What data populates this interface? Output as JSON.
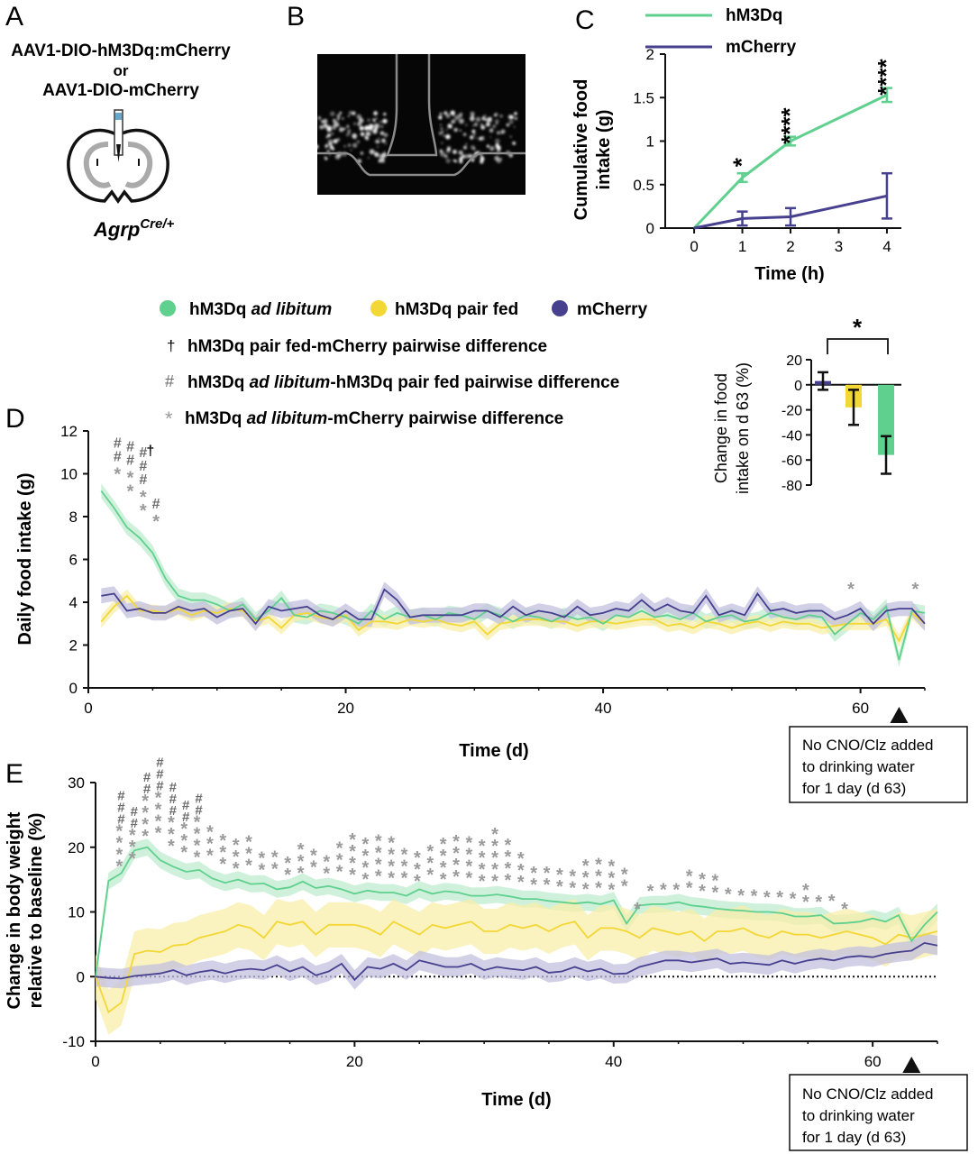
{
  "colors": {
    "hm3dq": "#5fd08e",
    "hm3dq_band": "#bfeccf",
    "pairfed": "#f2d735",
    "pairfed_band": "#f8edaa",
    "mcherry": "#46408e",
    "mcherry_band": "#c3c0de",
    "sig_gray": "#9a9a9a",
    "hash_gray": "#6b6b6b"
  },
  "panel_a": {
    "letter": "A",
    "line1": "AAV1-DIO-hM3Dq:mCherry",
    "line2": "or",
    "line3": "AAV1-DIO-mCherry",
    "genotype_base": "Agrp",
    "genotype_sup": "Cre/+"
  },
  "panel_b": {
    "letter": "B"
  },
  "panel_c": {
    "letter": "C"
  },
  "panel_d": {
    "letter": "D"
  },
  "panel_e": {
    "letter": "E"
  },
  "legend_main": {
    "item1_prefix": "hM3Dq ",
    "item1_italic": "ad libitum",
    "item2": "hM3Dq pair fed",
    "item3": "mCherry",
    "dagger_symbol": "†",
    "dagger_text": "hM3Dq pair fed-mCherry pairwise difference",
    "hash_symbol": "#",
    "hash_text_prefix": "hM3Dq ",
    "hash_text_italic": "ad libitum",
    "hash_text_suffix": "-hM3Dq pair fed pairwise difference",
    "star_symbol": "*",
    "star_text_prefix": "hM3Dq ",
    "star_text_italic": "ad libitum",
    "star_text_suffix": "-mCherry pairwise difference"
  },
  "annotation": {
    "line1": "No CNO/Clz added",
    "line2": "to drinking water",
    "line3": "for 1 day (d 63)"
  },
  "chart_data": [
    {
      "id": "C",
      "type": "line",
      "xlabel": "Time (h)",
      "ylabel_line1": "Cumulative food",
      "ylabel_line2": "intake (g)",
      "x": [
        0,
        1,
        2,
        4
      ],
      "xticks": [
        "0",
        "1",
        "2",
        "3",
        "4"
      ],
      "yticks": [
        "0",
        "0.5",
        "1",
        "1.5",
        "2"
      ],
      "xlim": [
        -0.6,
        4.3
      ],
      "ylim": [
        0,
        2
      ],
      "series": [
        {
          "name": "hM3Dq",
          "values": [
            0,
            0.58,
            1.0,
            1.53
          ],
          "err": [
            0,
            0.05,
            0.05,
            0.08
          ]
        },
        {
          "name": "mCherry",
          "values": [
            0,
            0.11,
            0.13,
            0.37
          ],
          "err": [
            0,
            0.08,
            0.1,
            0.26
          ]
        }
      ],
      "significance": [
        "",
        "*",
        "****",
        "****"
      ],
      "legend": "top-center"
    },
    {
      "id": "D-inset",
      "type": "bar",
      "ylabel_line1": "Change in food",
      "ylabel_line2": "intake on d 63 (%)",
      "categories": [
        "mCherry",
        "hM3Dq pair fed",
        "hM3Dq ad libitum"
      ],
      "values": [
        3,
        -18,
        -56
      ],
      "err": [
        7,
        14,
        15
      ],
      "yticks": [
        "20",
        "0",
        "-20",
        "-40",
        "-60",
        "-80"
      ],
      "ylim": [
        -80,
        20
      ],
      "significance": "*"
    },
    {
      "id": "D",
      "type": "line",
      "xlabel": "Time (d)",
      "ylabel": "Daily food intake (g)",
      "xlim": [
        0,
        65
      ],
      "ylim": [
        0,
        12
      ],
      "xticks": [
        "0",
        "20",
        "40",
        "60"
      ],
      "yticks": [
        "0",
        "2",
        "4",
        "6",
        "8",
        "10",
        "12"
      ],
      "x": [
        1,
        2,
        3,
        4,
        5,
        6,
        7,
        8,
        9,
        10,
        11,
        12,
        13,
        14,
        15,
        16,
        17,
        18,
        19,
        20,
        21,
        22,
        23,
        24,
        25,
        26,
        27,
        28,
        29,
        30,
        31,
        32,
        33,
        34,
        35,
        36,
        37,
        38,
        39,
        40,
        41,
        42,
        43,
        44,
        45,
        46,
        47,
        48,
        49,
        50,
        51,
        52,
        53,
        54,
        55,
        56,
        57,
        58,
        59,
        60,
        61,
        62,
        63,
        64,
        65
      ],
      "series": [
        {
          "name": "hM3Dq ad libitum",
          "values": [
            9.2,
            8.4,
            7.5,
            7.0,
            6.3,
            5.1,
            4.3,
            4.1,
            4.1,
            3.9,
            3.6,
            3.9,
            3.2,
            3.6,
            4.2,
            3.4,
            3.3,
            3.6,
            3.5,
            3.3,
            3.0,
            3.6,
            3.2,
            3.5,
            3.3,
            3.4,
            3.2,
            3.5,
            3.4,
            3.2,
            3.6,
            3.4,
            3.1,
            3.4,
            3.3,
            3.1,
            3.4,
            3.2,
            3.3,
            3.0,
            3.4,
            3.3,
            3.6,
            3.3,
            3.4,
            3.2,
            3.5,
            3.1,
            3.3,
            3.4,
            3.1,
            3.2,
            3.5,
            3.3,
            3.2,
            3.4,
            3.3,
            2.5,
            3.0,
            3.5,
            3.2,
            3.8,
            1.3,
            3.6,
            3.5
          ],
          "band": 0.35
        },
        {
          "name": "hM3Dq pair fed",
          "values": [
            3.1,
            3.8,
            4.3,
            3.6,
            3.6,
            3.5,
            3.7,
            3.4,
            3.6,
            3.5,
            3.7,
            3.6,
            3.1,
            3.3,
            2.8,
            3.4,
            3.5,
            3.3,
            3.2,
            3.4,
            2.7,
            3.1,
            3.1,
            3.0,
            3.2,
            3.1,
            3.2,
            3.0,
            2.9,
            3.1,
            2.5,
            3.0,
            3.1,
            3.2,
            3.2,
            3.1,
            3.1,
            2.9,
            3.1,
            3.1,
            3.0,
            3.1,
            3.2,
            3.2,
            2.9,
            3.0,
            2.8,
            3.1,
            3.0,
            2.8,
            3.0,
            3.1,
            2.9,
            3.1,
            3.0,
            3.0,
            2.8,
            2.9,
            3.0,
            3.0,
            3.0,
            3.2,
            2.2,
            3.5,
            3.0
          ],
          "band": 0.3
        },
        {
          "name": "mCherry",
          "values": [
            4.3,
            4.4,
            3.6,
            3.7,
            3.5,
            3.5,
            3.8,
            3.6,
            3.7,
            3.3,
            3.6,
            3.7,
            3.0,
            3.8,
            3.6,
            3.7,
            3.8,
            3.4,
            3.2,
            3.6,
            3.2,
            3.2,
            4.6,
            4.1,
            3.3,
            3.4,
            3.4,
            3.4,
            3.4,
            3.6,
            3.6,
            3.3,
            3.8,
            3.4,
            3.6,
            3.5,
            3.3,
            3.8,
            3.4,
            3.5,
            3.7,
            3.6,
            4.1,
            3.6,
            3.9,
            3.6,
            3.5,
            4.3,
            3.4,
            3.6,
            3.4,
            4.4,
            3.6,
            3.7,
            3.5,
            3.6,
            3.6,
            3.2,
            3.4,
            3.7,
            3.0,
            3.6,
            3.7,
            3.7,
            3.0
          ],
          "band": 0.35
        }
      ],
      "sig_marks": [
        {
          "day": 1,
          "rows": [
            "*",
            "#",
            "#"
          ]
        },
        {
          "day": 2,
          "rows": [
            "*",
            "*",
            "#",
            "#"
          ]
        },
        {
          "day": 3,
          "rows": [
            "*",
            "*",
            "#",
            "#",
            "#"
          ]
        },
        {
          "day": 4,
          "rows": [
            "*",
            "#"
          ]
        },
        {
          "day": 58,
          "rows": [
            "*"
          ]
        },
        {
          "day": 63,
          "rows": [
            "*"
          ]
        }
      ],
      "dagger_day": 3,
      "dagger": "†",
      "marker_day": 63
    },
    {
      "id": "E",
      "type": "line",
      "xlabel": "Time (d)",
      "ylabel_line1": "Change in body weight",
      "ylabel_line2": "relative to baseline (%)",
      "xlim": [
        0,
        65
      ],
      "ylim": [
        -10,
        30
      ],
      "xticks": [
        "0",
        "20",
        "40",
        "60"
      ],
      "yticks": [
        "-10",
        "0",
        "10",
        "20",
        "30"
      ],
      "x": [
        0,
        1,
        2,
        3,
        4,
        5,
        6,
        7,
        8,
        9,
        10,
        11,
        12,
        13,
        14,
        15,
        16,
        17,
        18,
        19,
        20,
        21,
        22,
        23,
        24,
        25,
        26,
        27,
        28,
        29,
        30,
        31,
        32,
        33,
        34,
        35,
        36,
        37,
        38,
        39,
        40,
        41,
        42,
        43,
        44,
        45,
        46,
        47,
        48,
        49,
        50,
        51,
        52,
        53,
        54,
        55,
        56,
        57,
        58,
        59,
        60,
        61,
        62,
        63,
        64,
        65
      ],
      "series": [
        {
          "name": "hM3Dq ad libitum",
          "values": [
            0,
            14.8,
            16.0,
            19.5,
            20.0,
            18.0,
            17.0,
            16.2,
            16.5,
            15.2,
            14.5,
            15.0,
            14.3,
            14.4,
            13.5,
            13.8,
            14.7,
            13.7,
            14.0,
            13.5,
            12.8,
            13.3,
            13.0,
            13.0,
            12.5,
            13.5,
            12.8,
            13.2,
            13.0,
            12.5,
            12.5,
            12.7,
            12.4,
            12.0,
            12.0,
            11.7,
            11.5,
            11.3,
            11.5,
            11.2,
            11.8,
            8.2,
            11.0,
            11.2,
            11.2,
            11.5,
            11.0,
            10.8,
            10.5,
            10.3,
            10.2,
            10.0,
            10.0,
            9.8,
            9.3,
            9.3,
            9.5,
            8.2,
            8.3,
            8.5,
            9.0,
            8.5,
            9.5,
            5.5,
            8.0,
            10.0
          ],
          "band": 1.3
        },
        {
          "name": "hM3Dq pair fed",
          "values": [
            0,
            -5.5,
            -4.0,
            3.5,
            4.0,
            3.8,
            4.8,
            5.0,
            6.0,
            6.5,
            7.0,
            8.0,
            7.5,
            6.0,
            8.5,
            8.0,
            8.5,
            6.5,
            8.0,
            8.0,
            8.0,
            7.5,
            6.5,
            8.5,
            7.5,
            6.5,
            8.0,
            7.5,
            8.0,
            8.5,
            7.0,
            7.0,
            8.0,
            7.5,
            8.0,
            7.0,
            8.0,
            8.5,
            6.0,
            7.5,
            7.5,
            7.0,
            6.0,
            7.5,
            7.0,
            6.5,
            7.0,
            5.5,
            7.0,
            7.0,
            7.5,
            6.5,
            6.0,
            7.0,
            6.5,
            6.5,
            6.0,
            6.5,
            7.0,
            6.5,
            6.0,
            5.0,
            6.5,
            6.0,
            6.5,
            7.0
          ],
          "band": 3.5
        },
        {
          "name": "mCherry",
          "values": [
            0,
            -0.2,
            -0.3,
            0.1,
            0.3,
            0.5,
            1.0,
            0.2,
            0.7,
            1.0,
            0.5,
            1.0,
            1.2,
            1.0,
            1.8,
            0.8,
            1.5,
            0.2,
            0.8,
            2.0,
            -0.5,
            1.5,
            1.2,
            2.0,
            1.0,
            2.5,
            2.0,
            1.5,
            1.5,
            2.0,
            1.0,
            1.5,
            1.2,
            1.0,
            1.5,
            0.6,
            0.8,
            1.5,
            0.8,
            1.2,
            0.4,
            0.5,
            1.5,
            2.0,
            2.5,
            2.5,
            2.2,
            2.5,
            2.8,
            2.0,
            2.2,
            2.0,
            1.8,
            2.5,
            2.0,
            2.5,
            2.8,
            2.5,
            3.0,
            3.2,
            3.0,
            3.5,
            3.8,
            4.0,
            5.2,
            4.8
          ],
          "band": 1.5
        }
      ],
      "star_counts": [
        4,
        3,
        4,
        4,
        3,
        3,
        4,
        3,
        3,
        3,
        3,
        2,
        2,
        2,
        3,
        2,
        2,
        3,
        4,
        4,
        4,
        4,
        3,
        3,
        3,
        4,
        4,
        4,
        4,
        5,
        4,
        3,
        2,
        2,
        2,
        2,
        3,
        3,
        3,
        2,
        1,
        1,
        1,
        1,
        2,
        2,
        2,
        1,
        1,
        1,
        1,
        1,
        1,
        2,
        1,
        1,
        1
      ],
      "star_days_start": 1,
      "hash_counts": [
        3,
        2,
        2,
        3,
        3,
        2,
        2
      ],
      "hash_days_start": 1,
      "marker_day": 63
    }
  ]
}
